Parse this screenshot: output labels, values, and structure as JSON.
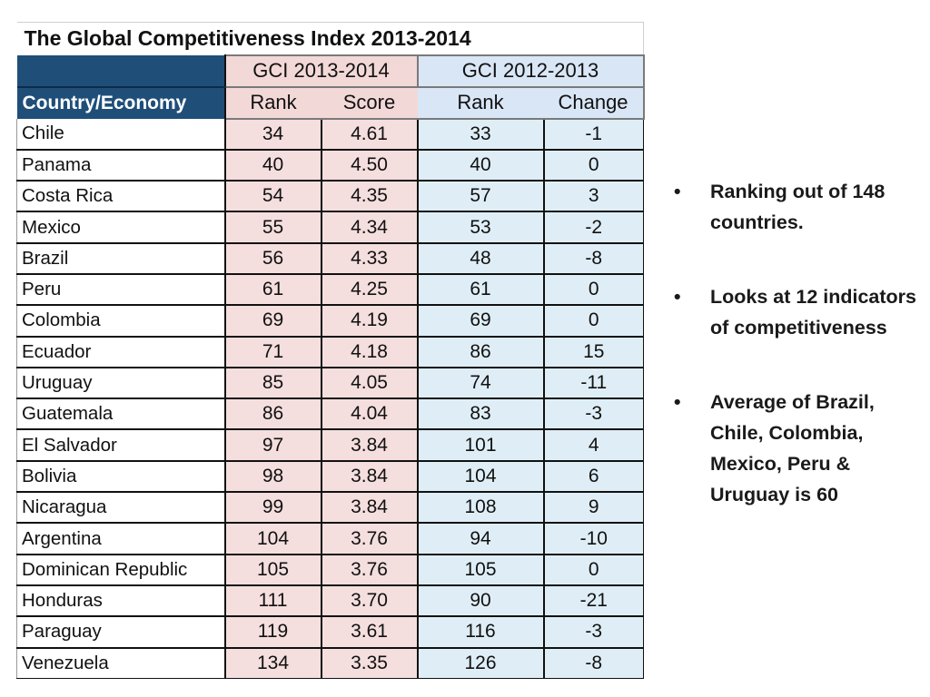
{
  "table": {
    "title": "The Global Competitiveness Index 2013-2014",
    "group_headers": [
      "GCI 2013-2014",
      "GCI 2012-2013"
    ],
    "columns": [
      "Country/Economy",
      "Rank",
      "Score",
      "Rank",
      "Change"
    ],
    "rows": [
      {
        "country": "Chile",
        "rank_2013": "34",
        "score": "4.61",
        "rank_2012": "33",
        "change": "-1"
      },
      {
        "country": "Panama",
        "rank_2013": "40",
        "score": "4.50",
        "rank_2012": "40",
        "change": "0"
      },
      {
        "country": "Costa Rica",
        "rank_2013": "54",
        "score": "4.35",
        "rank_2012": "57",
        "change": "3"
      },
      {
        "country": "Mexico",
        "rank_2013": "55",
        "score": "4.34",
        "rank_2012": "53",
        "change": "-2"
      },
      {
        "country": "Brazil",
        "rank_2013": "56",
        "score": "4.33",
        "rank_2012": "48",
        "change": "-8"
      },
      {
        "country": "Peru",
        "rank_2013": "61",
        "score": "4.25",
        "rank_2012": "61",
        "change": "0"
      },
      {
        "country": "Colombia",
        "rank_2013": "69",
        "score": "4.19",
        "rank_2012": "69",
        "change": "0"
      },
      {
        "country": "Ecuador",
        "rank_2013": "71",
        "score": "4.18",
        "rank_2012": "86",
        "change": "15"
      },
      {
        "country": "Uruguay",
        "rank_2013": "85",
        "score": "4.05",
        "rank_2012": "74",
        "change": "-11"
      },
      {
        "country": "Guatemala",
        "rank_2013": "86",
        "score": "4.04",
        "rank_2012": "83",
        "change": "-3"
      },
      {
        "country": "El Salvador",
        "rank_2013": "97",
        "score": "3.84",
        "rank_2012": "101",
        "change": "4"
      },
      {
        "country": "Bolivia",
        "rank_2013": "98",
        "score": "3.84",
        "rank_2012": "104",
        "change": "6"
      },
      {
        "country": "Nicaragua",
        "rank_2013": "99",
        "score": "3.84",
        "rank_2012": "108",
        "change": "9"
      },
      {
        "country": "Argentina",
        "rank_2013": "104",
        "score": "3.76",
        "rank_2012": "94",
        "change": "-10"
      },
      {
        "country": "Dominican Republic",
        "rank_2013": "105",
        "score": "3.76",
        "rank_2012": "105",
        "change": "0"
      },
      {
        "country": "Honduras",
        "rank_2013": "111",
        "score": "3.70",
        "rank_2012": "90",
        "change": "-21"
      },
      {
        "country": "Paraguay",
        "rank_2013": "119",
        "score": "3.61",
        "rank_2012": "116",
        "change": "-3"
      },
      {
        "country": "Venezuela",
        "rank_2013": "134",
        "score": "3.35",
        "rank_2012": "126",
        "change": "-8"
      }
    ]
  },
  "bullets": {
    "marker": "•",
    "items": [
      "Ranking out of 148 countries.",
      "Looks at 12 indicators of competitiveness",
      "Average of Brazil, Chile, Colombia, Mexico, Peru & Uruguay is 60"
    ]
  },
  "colors": {
    "header_navy": "#1f4e79",
    "gci_2013_fill": "#f3d8d8",
    "gci_2012_fill": "#d9e6f5"
  }
}
